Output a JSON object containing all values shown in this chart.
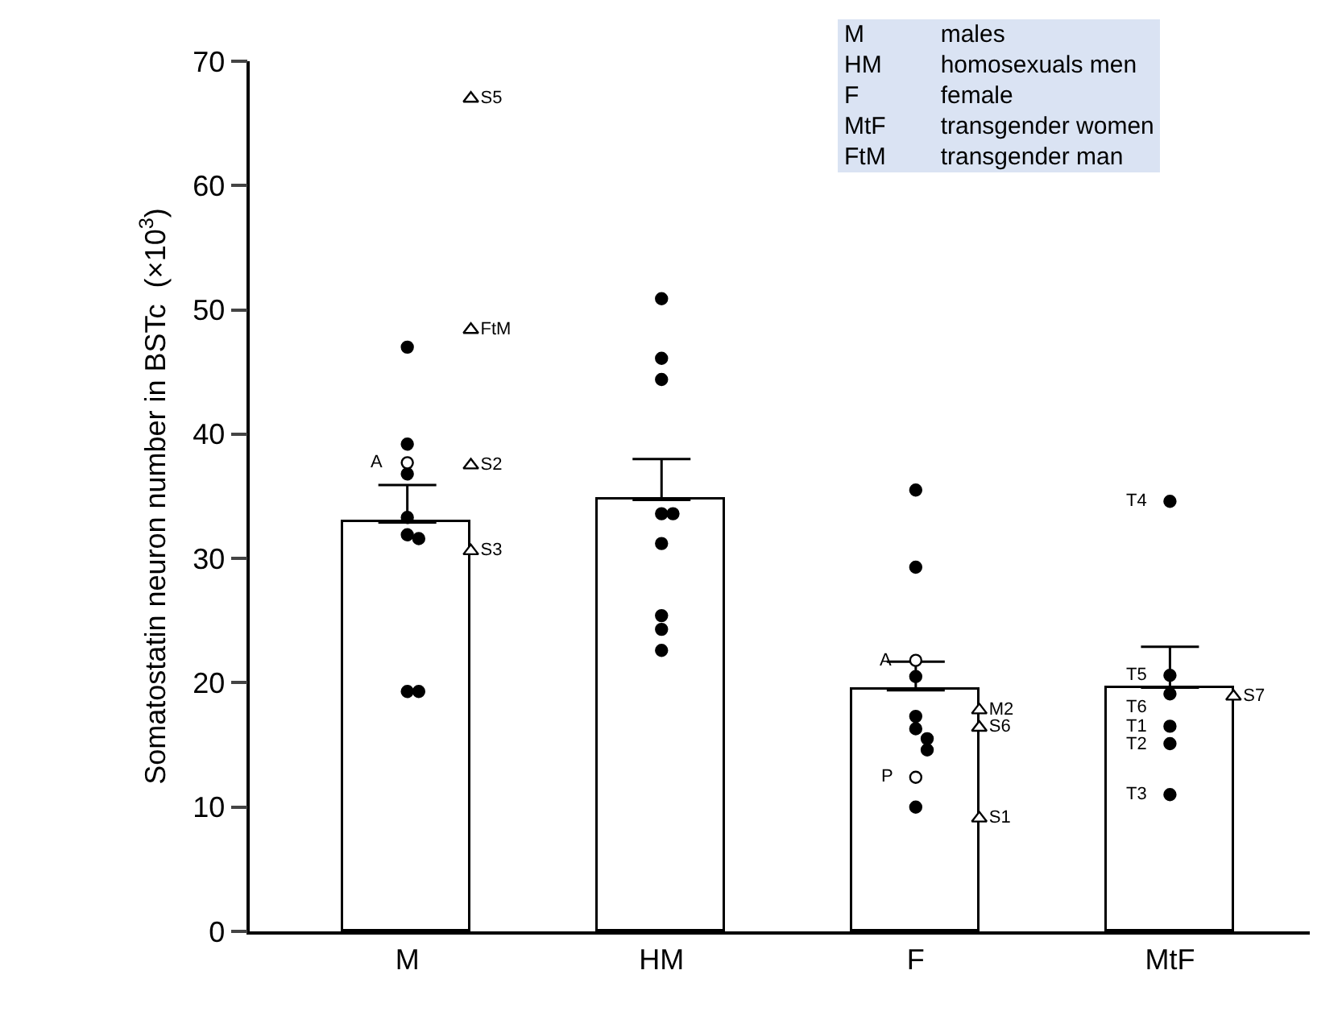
{
  "chart_data": {
    "type": "bar",
    "ylabel": "Somatostatin neuron number in BSTc  (×10$^{3}$)",
    "categories": [
      "M",
      "HM",
      "F",
      "MtF"
    ],
    "ylim": [
      0,
      70
    ],
    "yticks": [
      0,
      10,
      20,
      30,
      40,
      50,
      60,
      70
    ],
    "grid": false,
    "series": [
      {
        "color": "#ffffff",
        "values": [
          32.9,
          34.7,
          19.4,
          19.6
        ],
        "errors": [
          [
            32.9,
            35.9
          ],
          [
            34.7,
            38.0
          ],
          [
            19.4,
            21.7
          ],
          [
            19.6,
            22.9
          ]
        ]
      },
      {
        "type": "scatter",
        "marker": "circle",
        "color": "#000000",
        "x": [
          "M",
          "M",
          "M",
          "M",
          "M",
          "M",
          "M",
          "M",
          "HM",
          "HM",
          "HM",
          "HM",
          "HM",
          "HM",
          "HM",
          "HM",
          "HM",
          "F",
          "F",
          "F",
          "F",
          "F",
          "F",
          "F",
          "F",
          "MtF",
          "MtF",
          "MtF",
          "MtF",
          "MtF",
          "MtF"
        ],
        "values": [
          47.0,
          39.2,
          36.8,
          33.3,
          31.9,
          31.6,
          19.3,
          19.3,
          50.9,
          46.1,
          44.4,
          33.6,
          33.6,
          31.2,
          25.4,
          24.3,
          22.6,
          35.5,
          29.3,
          20.5,
          17.3,
          16.3,
          15.5,
          14.6,
          10.0,
          34.6,
          20.6,
          19.1,
          16.5,
          15.1,
          11.0
        ]
      },
      {
        "type": "scatter",
        "marker": "circle",
        "color": "#ffffff",
        "x": [
          "M",
          "F",
          "F"
        ],
        "values": [
          37.7,
          21.8,
          12.4
        ]
      },
      {
        "type": "scatter",
        "marker": "triangle",
        "color": "#ffffff",
        "x": [
          "M",
          "M",
          "M",
          "M",
          "F",
          "F",
          "F",
          "MtF"
        ],
        "values": [
          67.0,
          48.4,
          37.5,
          30.6,
          17.8,
          16.4,
          9.1,
          18.9
        ],
        "value_labels": [
          "S5",
          "FtM",
          "S2",
          "S3",
          "M2",
          "S6",
          "S1",
          "S7"
        ]
      }
    ],
    "annotations": [
      {
        "text": "A",
        "x": "M",
        "y": 37.7
      },
      {
        "text": "A",
        "x": "F",
        "y": 21.8
      },
      {
        "text": "P",
        "x": "F",
        "y": 12.4
      },
      {
        "text": "T4",
        "x": "MtF",
        "y": 34.6
      },
      {
        "text": "T5",
        "x": "MtF",
        "y": 20.6
      },
      {
        "text": "T6",
        "x": "MtF",
        "y": 19.1
      },
      {
        "text": "T1",
        "x": "MtF",
        "y": 16.5
      },
      {
        "text": "T2",
        "x": "MtF",
        "y": 15.1
      },
      {
        "text": "T3",
        "x": "MtF",
        "y": 11.0
      },
      "M males",
      "HM homosexuals men",
      "F female",
      "MtF transgender women",
      "FtM transgender man"
    ]
  }
}
